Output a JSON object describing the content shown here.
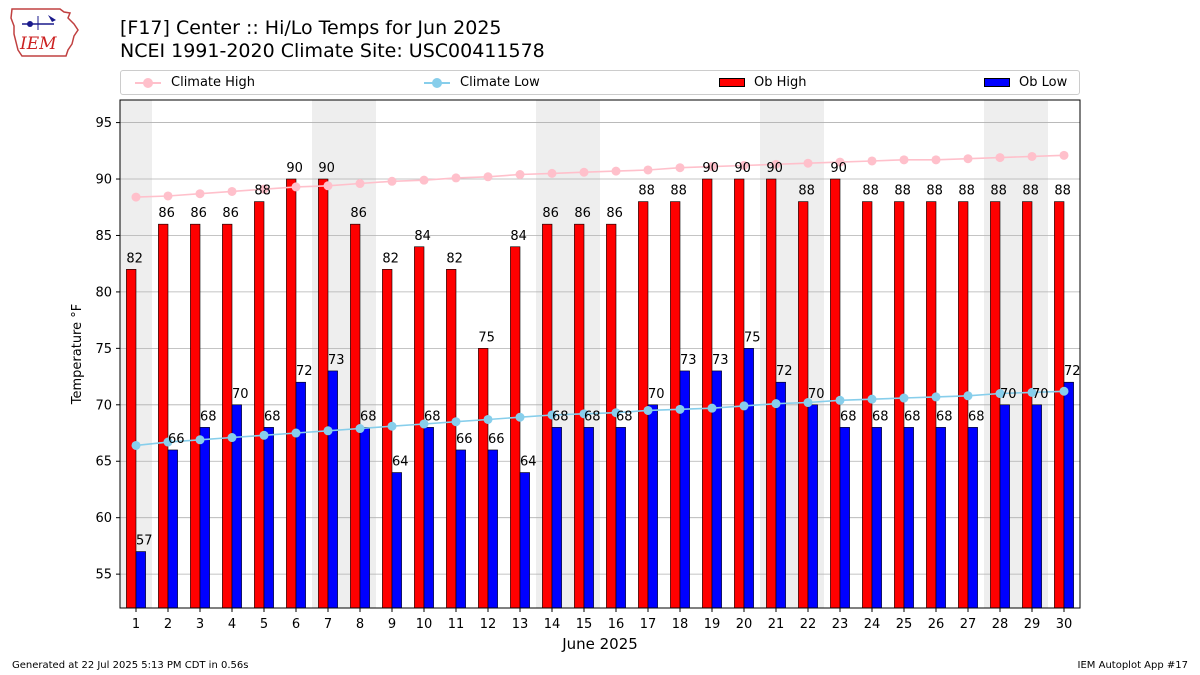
{
  "header": {
    "logo_text": "IEM",
    "title_line1": "[F17] Center :: Hi/Lo Temps for Jun 2025",
    "title_line2": "NCEI 1991-2020 Climate Site: USC00411578"
  },
  "legend": {
    "climate_high": "Climate High",
    "climate_low": "Climate Low",
    "ob_high": "Ob High",
    "ob_low": "Ob Low"
  },
  "colors": {
    "climate_high": "#ffc0cb",
    "climate_low": "#87ceeb",
    "ob_high": "#ff0000",
    "ob_low": "#0000ff",
    "weekend_shading": "#eeeeee",
    "grid": "#b0b0b0"
  },
  "chart_data": {
    "type": "bar",
    "xlabel": "June 2025",
    "ylabel": "Temperature °F",
    "ylim": [
      52,
      97
    ],
    "yticks": [
      55,
      60,
      65,
      70,
      75,
      80,
      85,
      90,
      95
    ],
    "grid": "horizontal",
    "legend_position": "top",
    "categories": [
      "1",
      "2",
      "3",
      "4",
      "5",
      "6",
      "7",
      "8",
      "9",
      "10",
      "11",
      "12",
      "13",
      "14",
      "15",
      "16",
      "17",
      "18",
      "19",
      "20",
      "21",
      "22",
      "23",
      "24",
      "25",
      "26",
      "27",
      "28",
      "29",
      "30"
    ],
    "weekend_days": [
      1,
      7,
      8,
      14,
      15,
      21,
      22,
      28,
      29
    ],
    "series": [
      {
        "name": "Ob High",
        "kind": "bar",
        "values": [
          82,
          86,
          86,
          86,
          88,
          90,
          90,
          86,
          82,
          84,
          82,
          75,
          84,
          86,
          86,
          86,
          88,
          88,
          90,
          90,
          90,
          88,
          90,
          88,
          88,
          88,
          88,
          88,
          88,
          88
        ],
        "labels": [
          "82",
          "86",
          "86",
          "86",
          "88",
          "90",
          "90",
          "86",
          "82",
          "84",
          "82",
          "75",
          "84",
          "86",
          "86",
          "86",
          "88",
          "88",
          "90",
          "90",
          "90",
          "88",
          "90",
          "88",
          "88",
          "88",
          "88",
          "88",
          "88",
          "88"
        ]
      },
      {
        "name": "Ob Low",
        "kind": "bar",
        "values": [
          57,
          66,
          68,
          70,
          68,
          72,
          73,
          68,
          64,
          68,
          66,
          66,
          64,
          68,
          68,
          68,
          70,
          73,
          73,
          75,
          72,
          70,
          68,
          68,
          68,
          68,
          68,
          70,
          70,
          72
        ],
        "labels": [
          "57",
          "66",
          "68",
          "70",
          "68",
          "72",
          "73",
          "68",
          "64",
          "68",
          "66",
          "66",
          "64",
          "68",
          "68",
          "68",
          "70",
          "73",
          "73",
          "75",
          "72",
          "70",
          "68",
          "68",
          "68",
          "68",
          "68",
          "70",
          "70",
          "72"
        ]
      },
      {
        "name": "Climate High",
        "kind": "line",
        "values": [
          88.4,
          88.5,
          88.7,
          88.9,
          89.1,
          89.3,
          89.4,
          89.6,
          89.8,
          89.9,
          90.1,
          90.2,
          90.4,
          90.5,
          90.6,
          90.7,
          90.8,
          91.0,
          91.1,
          91.2,
          91.3,
          91.4,
          91.5,
          91.6,
          91.7,
          91.7,
          91.8,
          91.9,
          92.0,
          92.1
        ]
      },
      {
        "name": "Climate Low",
        "kind": "line",
        "values": [
          66.4,
          66.7,
          66.9,
          67.1,
          67.3,
          67.5,
          67.7,
          67.9,
          68.1,
          68.3,
          68.5,
          68.7,
          68.9,
          69.1,
          69.2,
          69.3,
          69.5,
          69.6,
          69.7,
          69.9,
          70.1,
          70.2,
          70.4,
          70.5,
          70.6,
          70.7,
          70.8,
          71.0,
          71.1,
          71.2
        ]
      }
    ]
  },
  "footer": {
    "left": "Generated at 22 Jul 2025 5:13 PM CDT in 0.56s",
    "right": "IEM Autoplot App #17"
  }
}
